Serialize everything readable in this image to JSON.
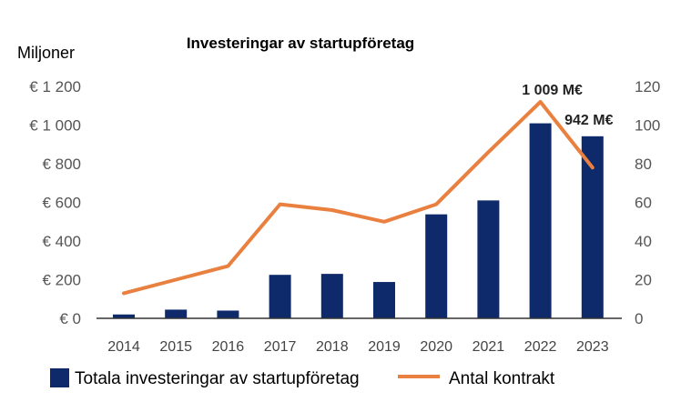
{
  "chart_data": {
    "type": "bar",
    "title": "Investeringar av startupföretag",
    "ylabel": "Miljoner",
    "categories": [
      "2014",
      "2015",
      "2016",
      "2017",
      "2018",
      "2019",
      "2020",
      "2021",
      "2022",
      "2023"
    ],
    "series": [
      {
        "name": "Totala investeringar av startupföretag",
        "type": "bar",
        "axis": "left",
        "color": "#0e2a6b",
        "values": [
          20,
          45,
          40,
          225,
          230,
          188,
          538,
          610,
          1009,
          942
        ]
      },
      {
        "name": "Antal kontrakt",
        "type": "line",
        "axis": "right",
        "color": "#e9803f",
        "values": [
          13,
          20,
          27,
          59,
          56,
          50,
          59,
          86,
          112,
          78
        ]
      }
    ],
    "ylim": [
      0,
      1200
    ],
    "y_ticks": [
      "€ 0",
      "€ 200",
      "€ 400",
      "€ 600",
      "€ 800",
      "€ 1 000",
      "€ 1 200"
    ],
    "y2lim": [
      0,
      120
    ],
    "y2_ticks": [
      "0",
      "20",
      "40",
      "60",
      "80",
      "100",
      "120"
    ],
    "annotations": [
      {
        "category": "2022",
        "value": 1009,
        "text": "1 009 M€"
      },
      {
        "category": "2023",
        "value": 942,
        "text": "942 M€"
      }
    ],
    "grid": false,
    "legend_position": "bottom"
  }
}
